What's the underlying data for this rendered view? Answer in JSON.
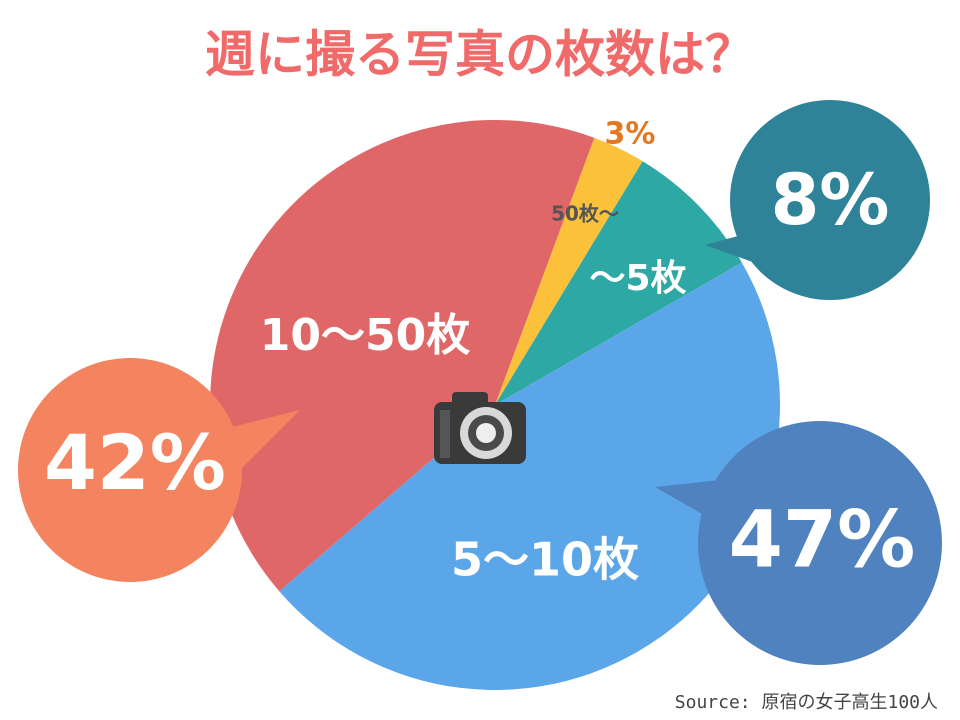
{
  "chart_data": {
    "type": "pie",
    "title": "週に撮る写真の枚数は？",
    "categories": [
      "50枚〜",
      "〜5枚",
      "5〜10枚",
      "10〜50枚"
    ],
    "values": [
      3,
      8,
      47,
      42
    ],
    "value_labels": [
      "3%",
      "8%",
      "47%",
      "42%"
    ],
    "colors": [
      "#fbc13a",
      "#2ea8a5",
      "#5ba6e8",
      "#e06767"
    ],
    "source": "Source: 原宿の女子高生100人"
  }
}
